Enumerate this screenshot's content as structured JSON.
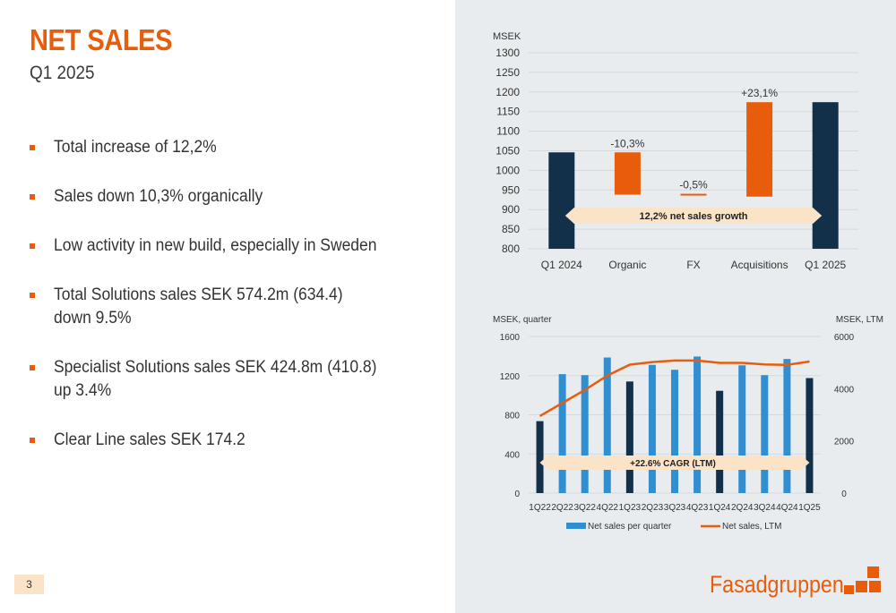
{
  "header": {
    "title": "NET SALES",
    "subtitle": "Q1 2025"
  },
  "bullets": [
    "Total increase of 12,2%",
    "Sales down 10,3% organically",
    "Low activity in new build, especially in Sweden",
    "Total Solutions sales SEK 574.2m (634.4)\ndown 9.5%",
    "Specialist Solutions sales SEK 424.8m (410.8)\nup 3.4%",
    "Clear Line sales SEK 174.2"
  ],
  "page_number": "3",
  "logo": {
    "text": "Fasadgruppen"
  },
  "colors": {
    "accent": "#e85d0c",
    "dark_bar": "#12304a",
    "blue_bar": "#2f8fd1",
    "arrow_fill": "#fbe3c8",
    "panel_bg": "#e8ecef"
  },
  "chart_data": [
    {
      "type": "bar",
      "subtype": "waterfall",
      "ylabel": "MSEK",
      "ylim": [
        800,
        1300
      ],
      "yticks": [
        800,
        850,
        900,
        950,
        1000,
        1050,
        1100,
        1150,
        1200,
        1250,
        1300
      ],
      "categories": [
        "Q1 2024",
        "Organic",
        "FX",
        "Acquisitions",
        "Q1 2025"
      ],
      "bars": [
        {
          "label": "Q1 2024",
          "kind": "total",
          "start": 800,
          "end": 1046,
          "data_label": ""
        },
        {
          "label": "Organic",
          "kind": "delta",
          "start": 1046,
          "end": 938,
          "data_label": "-10,3%"
        },
        {
          "label": "FX",
          "kind": "delta",
          "start": 938,
          "end": 933,
          "data_label": "-0,5%"
        },
        {
          "label": "Acquisitions",
          "kind": "delta",
          "start": 933,
          "end": 1174,
          "data_label": "+23,1%"
        },
        {
          "label": "Q1 2025",
          "kind": "total",
          "start": 800,
          "end": 1174,
          "data_label": ""
        }
      ],
      "annotation": "12,2% net sales growth",
      "grid": true
    },
    {
      "type": "bar",
      "subtype": "bar-line combo",
      "ylabel_left": "MSEK, quarter",
      "ylabel_right": "MSEK, LTM",
      "ylim_left": [
        0,
        1600
      ],
      "ylim_right": [
        0,
        6000
      ],
      "yticks_left": [
        0,
        400,
        800,
        1200,
        1600
      ],
      "yticks_right": [
        0,
        2000,
        4000,
        6000
      ],
      "categories": [
        "1Q22",
        "2Q22",
        "3Q22",
        "4Q22",
        "1Q23",
        "2Q23",
        "3Q23",
        "4Q23",
        "1Q24",
        "2Q24",
        "3Q24",
        "4Q24",
        "1Q25"
      ],
      "highlight_categories": [
        "1Q22",
        "1Q23",
        "1Q24",
        "1Q25"
      ],
      "series": [
        {
          "name": "Net sales per quarter",
          "type": "bar",
          "axis": "left",
          "values": [
            735,
            1215,
            1205,
            1385,
            1140,
            1310,
            1260,
            1395,
            1045,
            1305,
            1205,
            1370,
            1175
          ]
        },
        {
          "name": "Net sales, LTM",
          "type": "line",
          "axis": "right",
          "values": [
            2950,
            3450,
            3950,
            4500,
            4920,
            5020,
            5080,
            5080,
            4990,
            4990,
            4930,
            4910,
            5040
          ]
        }
      ],
      "annotation": "+22.6% CAGR (LTM)",
      "legend_position": "bottom",
      "grid": true
    }
  ]
}
